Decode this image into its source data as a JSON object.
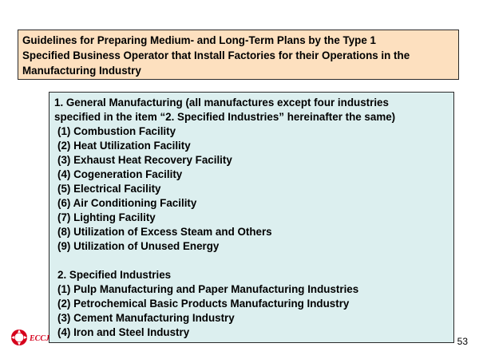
{
  "title": {
    "lines": [
      "Guidelines for Preparing Medium- and Long-Term Plans by the Type 1",
      "Specified Business Operator that Install Factories for their Operations in the",
      "Manufacturing Industry"
    ]
  },
  "section1": {
    "heading_lines": [
      "1. General Manufacturing (all manufactures except four industries",
      "specified in the item “2. Specified Industries” hereinafter the same)"
    ],
    "items": [
      "(1) Combustion Facility",
      "(2) Heat Utilization Facility",
      "(3) Exhaust Heat Recovery Facility",
      "(4) Cogeneration Facility",
      "(5) Electrical Facility",
      "(6) Air Conditioning Facility",
      "(7) Lighting Facility",
      "(8) Utilization of Excess Steam and Others",
      "(9) Utilization of Unused Energy"
    ]
  },
  "section2": {
    "heading": "2. Specified Industries",
    "items": [
      "(1) Pulp Manufacturing and Paper Manufacturing Industries",
      "(2) Petrochemical Basic Products Manufacturing Industry",
      "(3) Cement Manufacturing Industry",
      "(4) Iron and Steel Industry"
    ]
  },
  "logo": {
    "text": "ECCJ",
    "color": "#d6001c"
  },
  "page_number": "53"
}
